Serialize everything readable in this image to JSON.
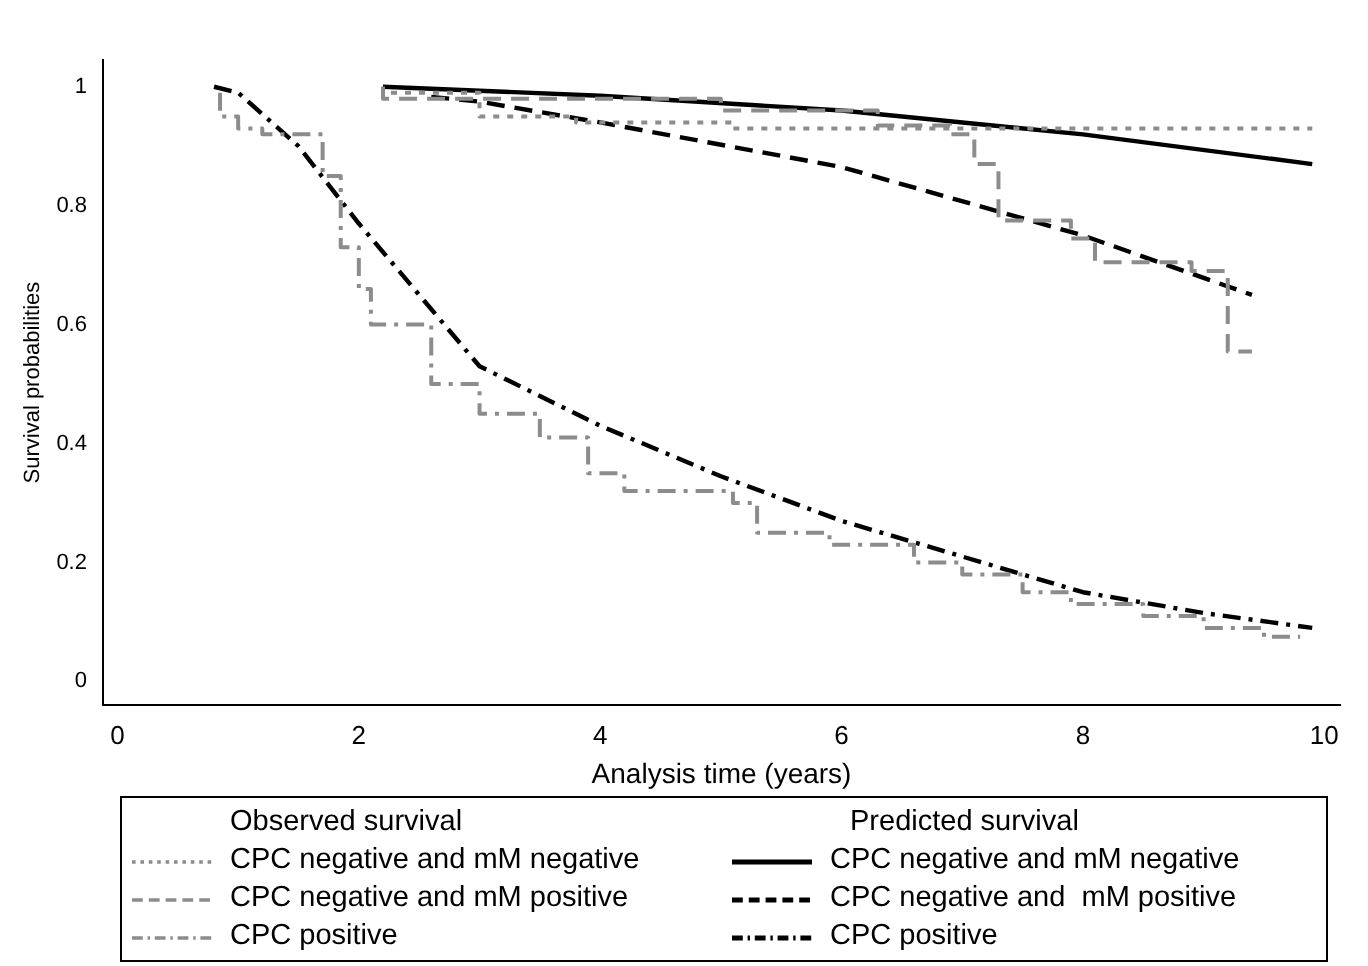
{
  "chart_data": {
    "type": "line",
    "xlabel": "Analysis time (years)",
    "ylabel": "Survival probabilities",
    "xlim": [
      -0.12,
      10.13
    ],
    "xticks": [
      0,
      2,
      4,
      6,
      8,
      10
    ],
    "ylim": [
      -0.04,
      1.045
    ],
    "yticks": [
      0,
      0.2,
      0.4,
      0.6,
      0.8,
      1
    ],
    "grid": false,
    "legend": "bottom",
    "marker": "none",
    "annotations": [
      "Observed survival",
      "Predicted survival"
    ],
    "series": [
      {
        "name": "CPC negative and mM negative",
        "type": "step",
        "line_style": "dotted",
        "color": "#8c8c8c",
        "x": [
          2.2,
          3.0,
          3.8,
          5.1,
          6.0,
          9.9
        ],
        "values": [
          1.0,
          0.99,
          0.95,
          0.94,
          0.93,
          0.93
        ]
      },
      {
        "name": "CPC negative and mM positive",
        "type": "step",
        "line_style": "dashed",
        "color": "#8c8c8c",
        "x": [
          2.2,
          5.0,
          6.3,
          6.9,
          7.1,
          7.3,
          7.9,
          8.1,
          8.9,
          9.2,
          9.3,
          9.4
        ],
        "values": [
          1.0,
          0.98,
          0.96,
          0.935,
          0.92,
          0.87,
          0.775,
          0.745,
          0.705,
          0.69,
          0.555,
          0.555
        ]
      },
      {
        "name": "CPC positive",
        "type": "step",
        "line_style": "dashdot",
        "color": "#8c8c8c",
        "x": [
          0.85,
          1.0,
          1.2,
          1.7,
          1.85,
          2.0,
          2.1,
          2.6,
          3.0,
          3.5,
          3.9,
          4.2,
          5.1,
          5.3,
          5.9,
          6.6,
          7.0,
          7.5,
          7.9,
          8.5,
          9.0,
          9.5,
          9.8
        ],
        "values": [
          0.99,
          0.95,
          0.93,
          0.92,
          0.85,
          0.73,
          0.66,
          0.6,
          0.5,
          0.45,
          0.41,
          0.35,
          0.32,
          0.3,
          0.25,
          0.23,
          0.2,
          0.18,
          0.15,
          0.13,
          0.11,
          0.09,
          0.075
        ]
      },
      {
        "name": "CPC negative and mM negative",
        "type": "line",
        "line_style": "solid",
        "color": "#000000",
        "x": [
          2.2,
          4,
          6,
          8,
          9.9
        ],
        "values": [
          1.0,
          0.985,
          0.96,
          0.92,
          0.87
        ]
      },
      {
        "name": "CPC negative and  mM positive",
        "type": "line",
        "line_style": "dashed",
        "color": "#000000",
        "x": [
          2.6,
          3,
          4,
          6,
          8,
          9.4
        ],
        "values": [
          0.983,
          0.975,
          0.94,
          0.865,
          0.75,
          0.65
        ]
      },
      {
        "name": "CPC positive",
        "type": "line",
        "line_style": "dashdot",
        "color": "#000000",
        "x": [
          0.8,
          1.0,
          1.5,
          2,
          3,
          4,
          5,
          6,
          7,
          8,
          9,
          9.9
        ],
        "values": [
          1.0,
          0.99,
          0.9,
          0.77,
          0.53,
          0.43,
          0.345,
          0.27,
          0.21,
          0.15,
          0.115,
          0.09
        ]
      }
    ]
  }
}
